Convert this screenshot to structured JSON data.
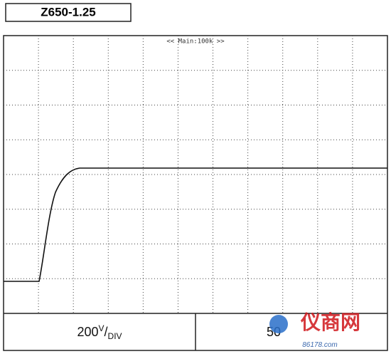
{
  "title": "Z650-1.25",
  "timebase_label": "<< Main:100k >>",
  "vertical_scale": {
    "value": "200",
    "unit": "V",
    "per": "DIV"
  },
  "horizontal_scale": "50",
  "watermark": {
    "name": "仪商网",
    "site": "86178.com"
  }
}
